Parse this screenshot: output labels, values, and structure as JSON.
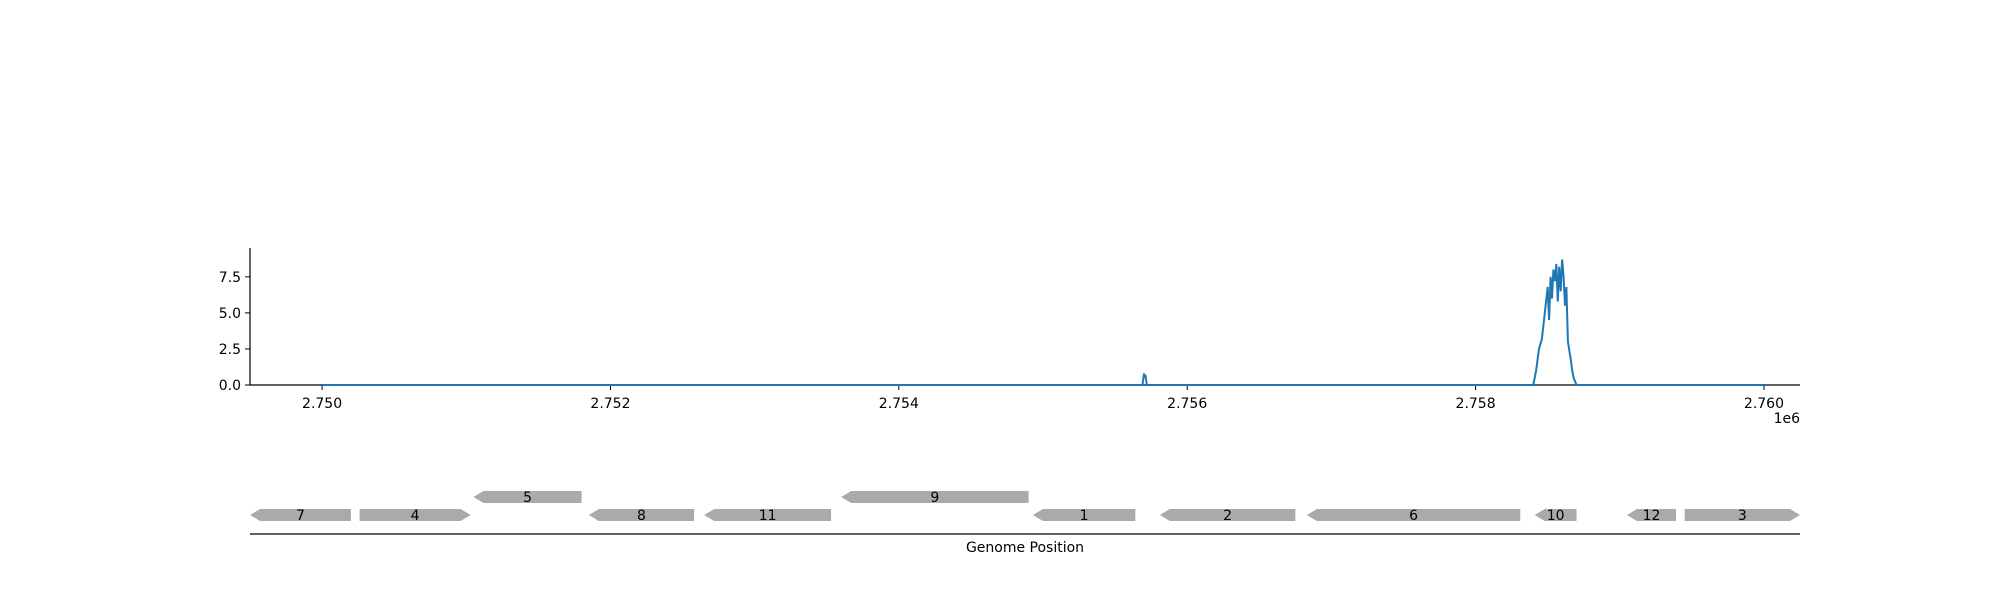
{
  "chart_data": [
    {
      "type": "line",
      "title": "",
      "xlabel": "",
      "ylabel": "",
      "x_offset_label": "1e6",
      "xlim": [
        2749500,
        2760250
      ],
      "ylim": [
        0,
        9.5
      ],
      "x_ticks": [
        2750000,
        2752000,
        2754000,
        2756000,
        2758000,
        2760000
      ],
      "x_tick_labels": [
        "2.750",
        "2.752",
        "2.754",
        "2.756",
        "2.758",
        "2.760"
      ],
      "y_ticks": [
        0,
        2.5,
        5,
        7.5
      ],
      "y_tick_labels": [
        "0.0",
        "2.5",
        "5.0",
        "7.5"
      ],
      "grid": false,
      "color": "#1f77b4",
      "series": [
        {
          "x": [
            2750000,
            2755690,
            2755700,
            2755705,
            2755710,
            2755720,
            2758400,
            2758420,
            2758440,
            2758460,
            2758480,
            2758500,
            2758510,
            2758520,
            2758530,
            2758540,
            2758550,
            2758560,
            2758570,
            2758580,
            2758590,
            2758600,
            2758610,
            2758620,
            2758630,
            2758640,
            2758650,
            2758660,
            2758670,
            2758680,
            2758700,
            2760000
          ],
          "y": [
            0,
            0,
            0.8,
            0.5,
            0.7,
            0,
            0,
            1.0,
            2.5,
            3.2,
            5.0,
            6.8,
            4.5,
            7.5,
            6.0,
            8.0,
            7.2,
            8.4,
            5.8,
            8.2,
            6.5,
            8.7,
            7.6,
            5.5,
            6.8,
            3.0,
            2.4,
            1.8,
            1.0,
            0.5,
            0,
            0
          ]
        }
      ]
    },
    {
      "type": "gene-track",
      "xlabel": "Genome Position",
      "xlim": [
        2749500,
        2760250
      ],
      "color": "#aaaaaa",
      "genes": [
        {
          "label": "7",
          "start": 2749500,
          "end": 2750200,
          "strand": -1,
          "row": 0
        },
        {
          "label": "4",
          "start": 2750260,
          "end": 2751030,
          "strand": 1,
          "row": 0
        },
        {
          "label": "5",
          "start": 2751050,
          "end": 2751800,
          "strand": -1,
          "row": 1
        },
        {
          "label": "8",
          "start": 2751850,
          "end": 2752580,
          "strand": -1,
          "row": 0
        },
        {
          "label": "11",
          "start": 2752650,
          "end": 2753530,
          "strand": -1,
          "row": 0
        },
        {
          "label": "9",
          "start": 2753600,
          "end": 2754900,
          "strand": -1,
          "row": 1
        },
        {
          "label": "1",
          "start": 2754930,
          "end": 2755640,
          "strand": -1,
          "row": 0
        },
        {
          "label": "2",
          "start": 2755810,
          "end": 2756750,
          "strand": -1,
          "row": 0
        },
        {
          "label": "6",
          "start": 2756830,
          "end": 2758310,
          "strand": -1,
          "row": 0
        },
        {
          "label": "10",
          "start": 2758410,
          "end": 2758700,
          "strand": -1,
          "row": 0
        },
        {
          "label": "12",
          "start": 2759050,
          "end": 2759390,
          "strand": -1,
          "row": 0
        },
        {
          "label": "3",
          "start": 2759450,
          "end": 2760250,
          "strand": 1,
          "row": 0
        }
      ]
    }
  ]
}
